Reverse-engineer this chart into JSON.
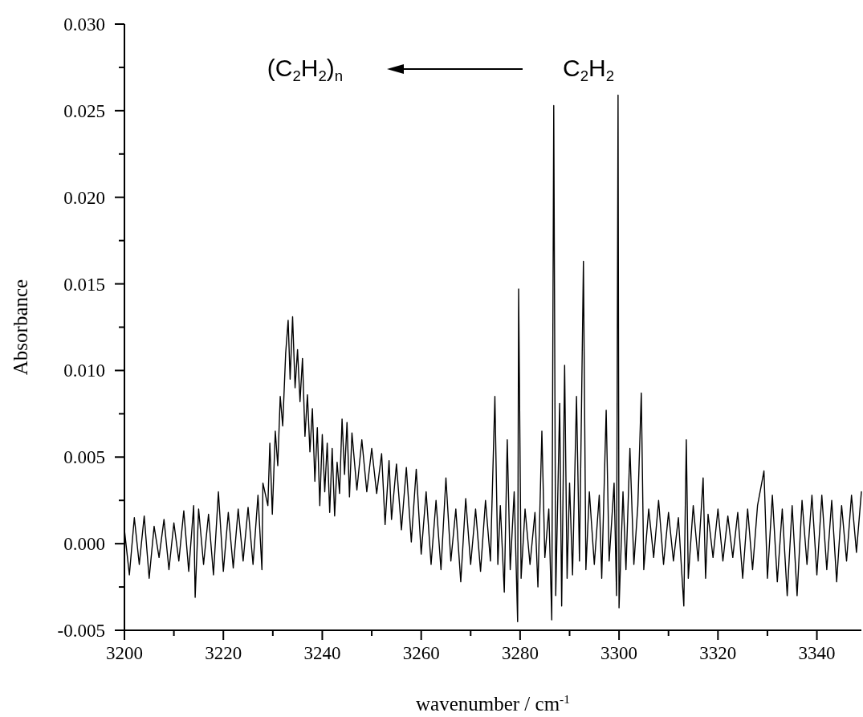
{
  "chart_data": {
    "type": "line",
    "xlabel": "wavenumber / cm$^{-1}$",
    "ylabel": "Absorbance",
    "annotations": [
      "(C$_{2}$H$_{2}$)$_{n}$",
      "C$_{2}$H$_{2}$"
    ],
    "xlim": [
      3200,
      3349
    ],
    "ylim": [
      -0.005,
      0.03
    ],
    "xticks": [
      3200,
      {
        "value": 3210,
        "label": null
      },
      3220,
      {
        "value": 3230,
        "label": null
      },
      3240,
      {
        "value": 3250,
        "label": null
      },
      3260,
      {
        "value": 3270,
        "label": null
      },
      3280,
      {
        "value": 3290,
        "label": null
      },
      3300,
      {
        "value": 3310,
        "label": null
      },
      3320,
      {
        "value": 3330,
        "label": null
      },
      3340
    ],
    "yticks": [
      {
        "value": -0.005,
        "label": "-0.005"
      },
      {
        "value": -0.0025,
        "label": null
      },
      {
        "value": 0,
        "label": "0.000"
      },
      {
        "value": 0.0025,
        "label": null
      },
      {
        "value": 0.005,
        "label": "0.005"
      },
      {
        "value": 0.0075,
        "label": null
      },
      {
        "value": 0.01,
        "label": "0.010"
      },
      {
        "value": 0.0125,
        "label": null
      },
      {
        "value": 0.015,
        "label": "0.015"
      },
      {
        "value": 0.0175,
        "label": null
      },
      {
        "value": 0.02,
        "label": "0.020"
      },
      {
        "value": 0.0225,
        "label": null
      },
      {
        "value": 0.025,
        "label": "0.025"
      },
      {
        "value": 0.0275,
        "label": null
      },
      {
        "value": 0.03,
        "label": "0.030"
      }
    ],
    "series": [
      {
        "color": "#000000",
        "x": [
          3200,
          3201,
          3202,
          3203,
          3204,
          3205,
          3206,
          3207,
          3208,
          3209,
          3210,
          3211,
          3212,
          3213,
          3214,
          3214.3,
          3215,
          3216,
          3217,
          3218,
          3219,
          3220,
          3221,
          3222,
          3223,
          3224,
          3225,
          3226,
          3227,
          3227.8,
          3228,
          3229,
          3229.4,
          3229.9,
          3230.5,
          3231,
          3231.5,
          3232,
          3232.6,
          3233.1,
          3233.5,
          3234,
          3234.5,
          3235,
          3235.5,
          3236,
          3236.5,
          3237,
          3237.5,
          3238,
          3238.5,
          3239,
          3239.5,
          3240,
          3240.5,
          3241,
          3241.5,
          3242,
          3242.5,
          3243,
          3243.5,
          3244,
          3244.5,
          3245,
          3245.5,
          3246,
          3247,
          3248,
          3249,
          3250,
          3251,
          3252,
          3252.7,
          3253.5,
          3254,
          3255,
          3256,
          3257,
          3258,
          3259,
          3260,
          3261,
          3262,
          3263,
          3264,
          3265,
          3266,
          3267,
          3268,
          3269,
          3270,
          3271,
          3272,
          3273,
          3274,
          3274.9,
          3275.5,
          3276,
          3276.8,
          3277.4,
          3278,
          3278.8,
          3279.5,
          3279.7,
          3280.2,
          3281,
          3282,
          3283,
          3283.6,
          3284.4,
          3285,
          3285.8,
          3286.4,
          3286.8,
          3287.2,
          3288,
          3288.4,
          3289,
          3289.5,
          3290,
          3290.6,
          3291.4,
          3292,
          3292.8,
          3293.3,
          3294,
          3295,
          3296,
          3296.5,
          3297.4,
          3298,
          3299,
          3299.5,
          3299.8,
          3300,
          3300.8,
          3301.4,
          3302.2,
          3303,
          3303.8,
          3304.5,
          3305,
          3306,
          3307,
          3308,
          3309,
          3310,
          3311,
          3312,
          3313.1,
          3313.6,
          3314,
          3315,
          3316,
          3317,
          3317.5,
          3318,
          3319,
          3320,
          3321,
          3322,
          3323,
          3324,
          3325,
          3326,
          3327,
          3328,
          3329.3,
          3330,
          3331,
          3332,
          3333,
          3334,
          3335,
          3336,
          3337,
          3338,
          3339,
          3340,
          3341,
          3342,
          3343,
          3344,
          3345,
          3346,
          3347,
          3348,
          3349
        ],
        "values": [
          0.0008,
          -0.0018,
          0.0015,
          -0.0012,
          0.0016,
          -0.002,
          0.001,
          -0.0008,
          0.0014,
          -0.0015,
          0.0012,
          -0.001,
          0.0019,
          -0.0016,
          0.0022,
          -0.0031,
          0.002,
          -0.0012,
          0.0017,
          -0.0018,
          0.003,
          -0.0016,
          0.0018,
          -0.0014,
          0.002,
          -0.001,
          0.0021,
          -0.0012,
          0.0028,
          -0.0015,
          0.0035,
          0.0022,
          0.0058,
          0.0017,
          0.0065,
          0.0045,
          0.0085,
          0.0068,
          0.011,
          0.0129,
          0.0095,
          0.0131,
          0.009,
          0.0112,
          0.0082,
          0.0107,
          0.0062,
          0.0086,
          0.0053,
          0.0078,
          0.0036,
          0.0067,
          0.0022,
          0.0063,
          0.003,
          0.0058,
          0.0018,
          0.0055,
          0.0016,
          0.0047,
          0.0029,
          0.0072,
          0.004,
          0.007,
          0.0027,
          0.0064,
          0.0031,
          0.006,
          0.003,
          0.0055,
          0.0029,
          0.0052,
          0.0011,
          0.0048,
          0.0014,
          0.0046,
          0.0008,
          0.0044,
          0.0001,
          0.0043,
          -0.0006,
          0.003,
          -0.0012,
          0.0025,
          -0.0015,
          0.0038,
          -0.001,
          0.002,
          -0.0022,
          0.0026,
          -0.0012,
          0.002,
          -0.0016,
          0.0025,
          -0.001,
          0.0085,
          -0.0012,
          0.0022,
          -0.0028,
          0.006,
          -0.0015,
          0.003,
          -0.0045,
          0.0147,
          -0.002,
          0.002,
          -0.0012,
          0.0018,
          -0.0025,
          0.0065,
          -0.0008,
          0.002,
          -0.0044,
          0.0253,
          -0.003,
          0.0081,
          -0.0036,
          0.0103,
          -0.002,
          0.0035,
          -0.0018,
          0.0085,
          -0.001,
          0.0163,
          -0.0015,
          0.003,
          -0.0012,
          0.0028,
          -0.002,
          0.0077,
          -0.001,
          0.0035,
          -0.003,
          0.0259,
          -0.0037,
          0.003,
          -0.0015,
          0.0055,
          -0.0012,
          0.0022,
          0.0087,
          -0.0015,
          0.002,
          -0.0008,
          0.0025,
          -0.0012,
          0.0018,
          -0.001,
          0.0015,
          -0.0036,
          0.006,
          -0.002,
          0.0022,
          -0.001,
          0.0038,
          -0.002,
          0.0017,
          -0.0008,
          0.002,
          -0.001,
          0.0016,
          -0.0008,
          0.0018,
          -0.002,
          0.002,
          -0.0015,
          0.0022,
          0.0042,
          -0.002,
          0.0028,
          -0.0022,
          0.002,
          -0.003,
          0.0022,
          -0.003,
          0.0025,
          -0.0012,
          0.0028,
          -0.0018,
          0.0028,
          -0.0015,
          0.0025,
          -0.0022,
          0.0022,
          -0.001,
          0.0028,
          -0.0005,
          0.003
        ]
      }
    ]
  }
}
